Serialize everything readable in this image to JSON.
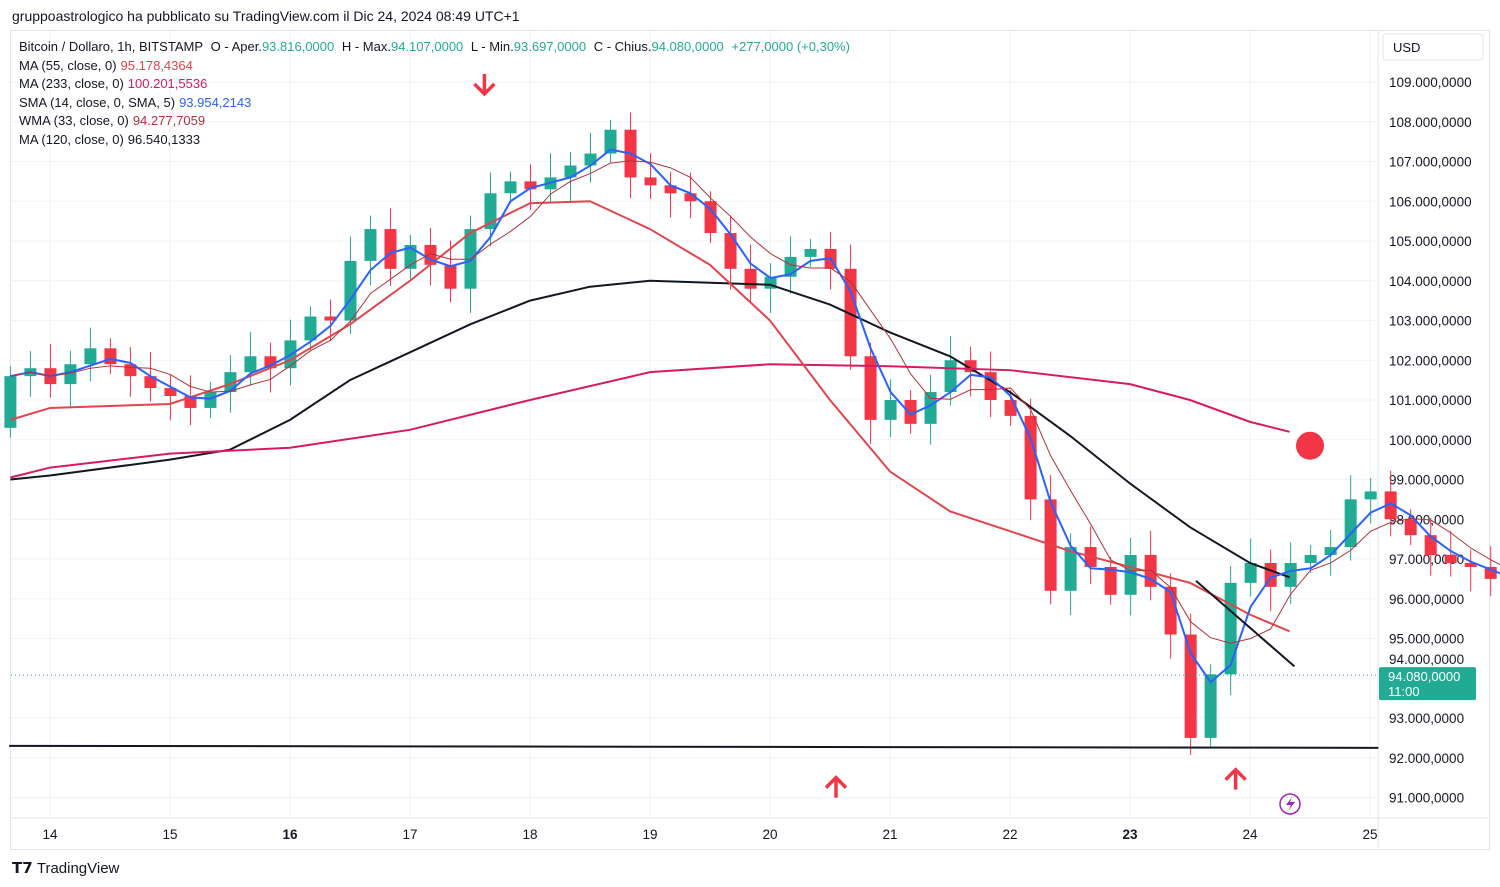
{
  "publisher_line": "gruppoastrologico ha pubblicato su TradingView.com il Dic 24, 2024 08:49 UTC+1",
  "legend": {
    "symbol": "Bitcoin / Dollaro, 1h, BITSTAMP",
    "o_label": "O - Aper.",
    "o": "93.816,0000",
    "h_label": "H - Max.",
    "h": "94.107,0000",
    "l_label": "L - Min.",
    "l": "93.697,0000",
    "c_label": "C - Chius.",
    "c": "94.080,0000",
    "change": "+277,0000 (+0,30%)",
    "indicators": [
      {
        "label": "MA (55, close, 0)",
        "value": "95.178,4364",
        "color": "#e0464e"
      },
      {
        "label": "MA (233, close, 0)",
        "value": "100.201,5536",
        "color": "#d81b60"
      },
      {
        "label": "SMA (14, close, 0, SMA, 5)",
        "value": "93.954,2143",
        "color": "#2962ff"
      },
      {
        "label": "WMA (33, close, 0)",
        "value": "94.277,7059",
        "color": "#b2323a"
      },
      {
        "label": "MA (120, close, 0)",
        "value": "96.540,1333",
        "color": "#131722"
      }
    ]
  },
  "brand": "TradingView",
  "chart_data": {
    "type": "candlestick",
    "currency": "USD",
    "ylim": [
      90500,
      109700
    ],
    "xlim": [
      13.66,
      25.07
    ],
    "yticks": [
      109000,
      108000,
      107000,
      106000,
      105000,
      104000,
      103000,
      102000,
      101000,
      100000,
      99000,
      98000,
      97000,
      96000,
      95000,
      94000,
      93000,
      92000,
      91000
    ],
    "ytick_labels": [
      "109.000,0000",
      "108.000,0000",
      "107.000,0000",
      "106.000,0000",
      "105.000,0000",
      "104.000,0000",
      "103.000,0000",
      "102.000,0000",
      "101.000,0000",
      "100.000,0000",
      "99.000,0000",
      "98.000,0000",
      "97.000,0000",
      "96.000,0000",
      "95.000,0000",
      "94.000,0000",
      "93.000,0000",
      "92.000,0000",
      "91.000,0000"
    ],
    "xticks": [
      14,
      15,
      16,
      17,
      18,
      19,
      20,
      21,
      22,
      23,
      24,
      25
    ],
    "xtick_labels": [
      "14",
      "15",
      "16",
      "17",
      "18",
      "19",
      "20",
      "21",
      "22",
      "23",
      "24",
      "25"
    ],
    "bold_xticks": [
      "16",
      "23"
    ],
    "last_price": {
      "value": 94080,
      "label": "94.080,0000",
      "countdown": "11:00"
    },
    "candle_start_day": 13.67,
    "candle_step_days": 0.1667,
    "open_first": 100300,
    "closes": [
      101600,
      101800,
      101400,
      101900,
      102300,
      101900,
      101600,
      101300,
      101100,
      100800,
      101200,
      101700,
      102100,
      101800,
      102500,
      103100,
      103000,
      104500,
      105300,
      104300,
      104900,
      104400,
      103800,
      105300,
      106200,
      106500,
      106300,
      106600,
      106900,
      107200,
      107800,
      106600,
      106400,
      106200,
      106000,
      105200,
      104300,
      103800,
      104100,
      104600,
      104800,
      104300,
      102100,
      100500,
      101000,
      100400,
      101200,
      102000,
      101700,
      101000,
      100600,
      98500,
      96200,
      97300,
      96800,
      96100,
      97100,
      96300,
      95100,
      92500,
      94100,
      96400,
      96900,
      96300,
      96900,
      97100,
      97300,
      98500,
      98700,
      98000,
      97600,
      97100,
      96900,
      96800,
      96500,
      96300,
      96000,
      96600,
      96800,
      95400,
      95900,
      94300,
      94800,
      95700,
      94100,
      95800,
      96200,
      95600,
      94600,
      93100,
      92700,
      93800,
      94700,
      94300,
      94080
    ],
    "series": [
      {
        "name": "MA (120, close, 0)",
        "color": "#131722",
        "points": [
          [
            13.67,
            99000
          ],
          [
            14,
            99100
          ],
          [
            15,
            99500
          ],
          [
            15.5,
            99750
          ],
          [
            16,
            100500
          ],
          [
            16.5,
            101500
          ],
          [
            17,
            102200
          ],
          [
            17.5,
            102900
          ],
          [
            18,
            103500
          ],
          [
            18.5,
            103850
          ],
          [
            19,
            104000
          ],
          [
            19.5,
            103950
          ],
          [
            20,
            103900
          ],
          [
            20.5,
            103400
          ],
          [
            21,
            102700
          ],
          [
            21.5,
            102100
          ],
          [
            22,
            101200
          ],
          [
            22.5,
            100100
          ],
          [
            23,
            98900
          ],
          [
            23.5,
            97800
          ],
          [
            24,
            96900
          ],
          [
            24.33,
            96540
          ]
        ]
      },
      {
        "name": "MA (233, close, 0)",
        "color": "#d81b60",
        "points": [
          [
            13.67,
            99050
          ],
          [
            14,
            99300
          ],
          [
            15,
            99650
          ],
          [
            16,
            99800
          ],
          [
            17,
            100250
          ],
          [
            18,
            101000
          ],
          [
            19,
            101700
          ],
          [
            20,
            101900
          ],
          [
            21,
            101850
          ],
          [
            22,
            101750
          ],
          [
            23,
            101400
          ],
          [
            23.5,
            101000
          ],
          [
            24,
            100450
          ],
          [
            24.33,
            100200
          ]
        ]
      },
      {
        "name": "MA (55, close, 0)",
        "color": "#e0464e",
        "points": [
          [
            13.67,
            100500
          ],
          [
            14,
            100800
          ],
          [
            15,
            100900
          ],
          [
            15.5,
            101400
          ],
          [
            16,
            102000
          ],
          [
            16.5,
            102900
          ],
          [
            17,
            104000
          ],
          [
            17.5,
            105200
          ],
          [
            18,
            105950
          ],
          [
            18.5,
            106000
          ],
          [
            19,
            105300
          ],
          [
            19.5,
            104400
          ],
          [
            20,
            103000
          ],
          [
            20.5,
            101000
          ],
          [
            21,
            99200
          ],
          [
            21.5,
            98200
          ],
          [
            22,
            97700
          ],
          [
            22.5,
            97200
          ],
          [
            23,
            96800
          ],
          [
            23.5,
            96400
          ],
          [
            24,
            95600
          ],
          [
            24.33,
            95180
          ]
        ]
      }
    ],
    "computed_series": [
      {
        "name": "SMA (14, close, 0, SMA, 5)",
        "color": "#2962ff",
        "period": 3
      },
      {
        "name": "WMA (33, close, 0)",
        "color": "#b2323a",
        "period": 5
      }
    ],
    "drawings": {
      "support_line": [
        [
          13.66,
          92300
        ],
        [
          25.07,
          92250
        ]
      ],
      "trend_line": [
        [
          23.55,
          96450
        ],
        [
          24.37,
          94300
        ]
      ],
      "arrows_down": [
        [
          17.62,
          108700
        ]
      ],
      "arrows_up": [
        [
          20.55,
          91500
        ],
        [
          23.88,
          91700
        ]
      ],
      "red_dot": [
        24.5,
        99850
      ]
    }
  }
}
